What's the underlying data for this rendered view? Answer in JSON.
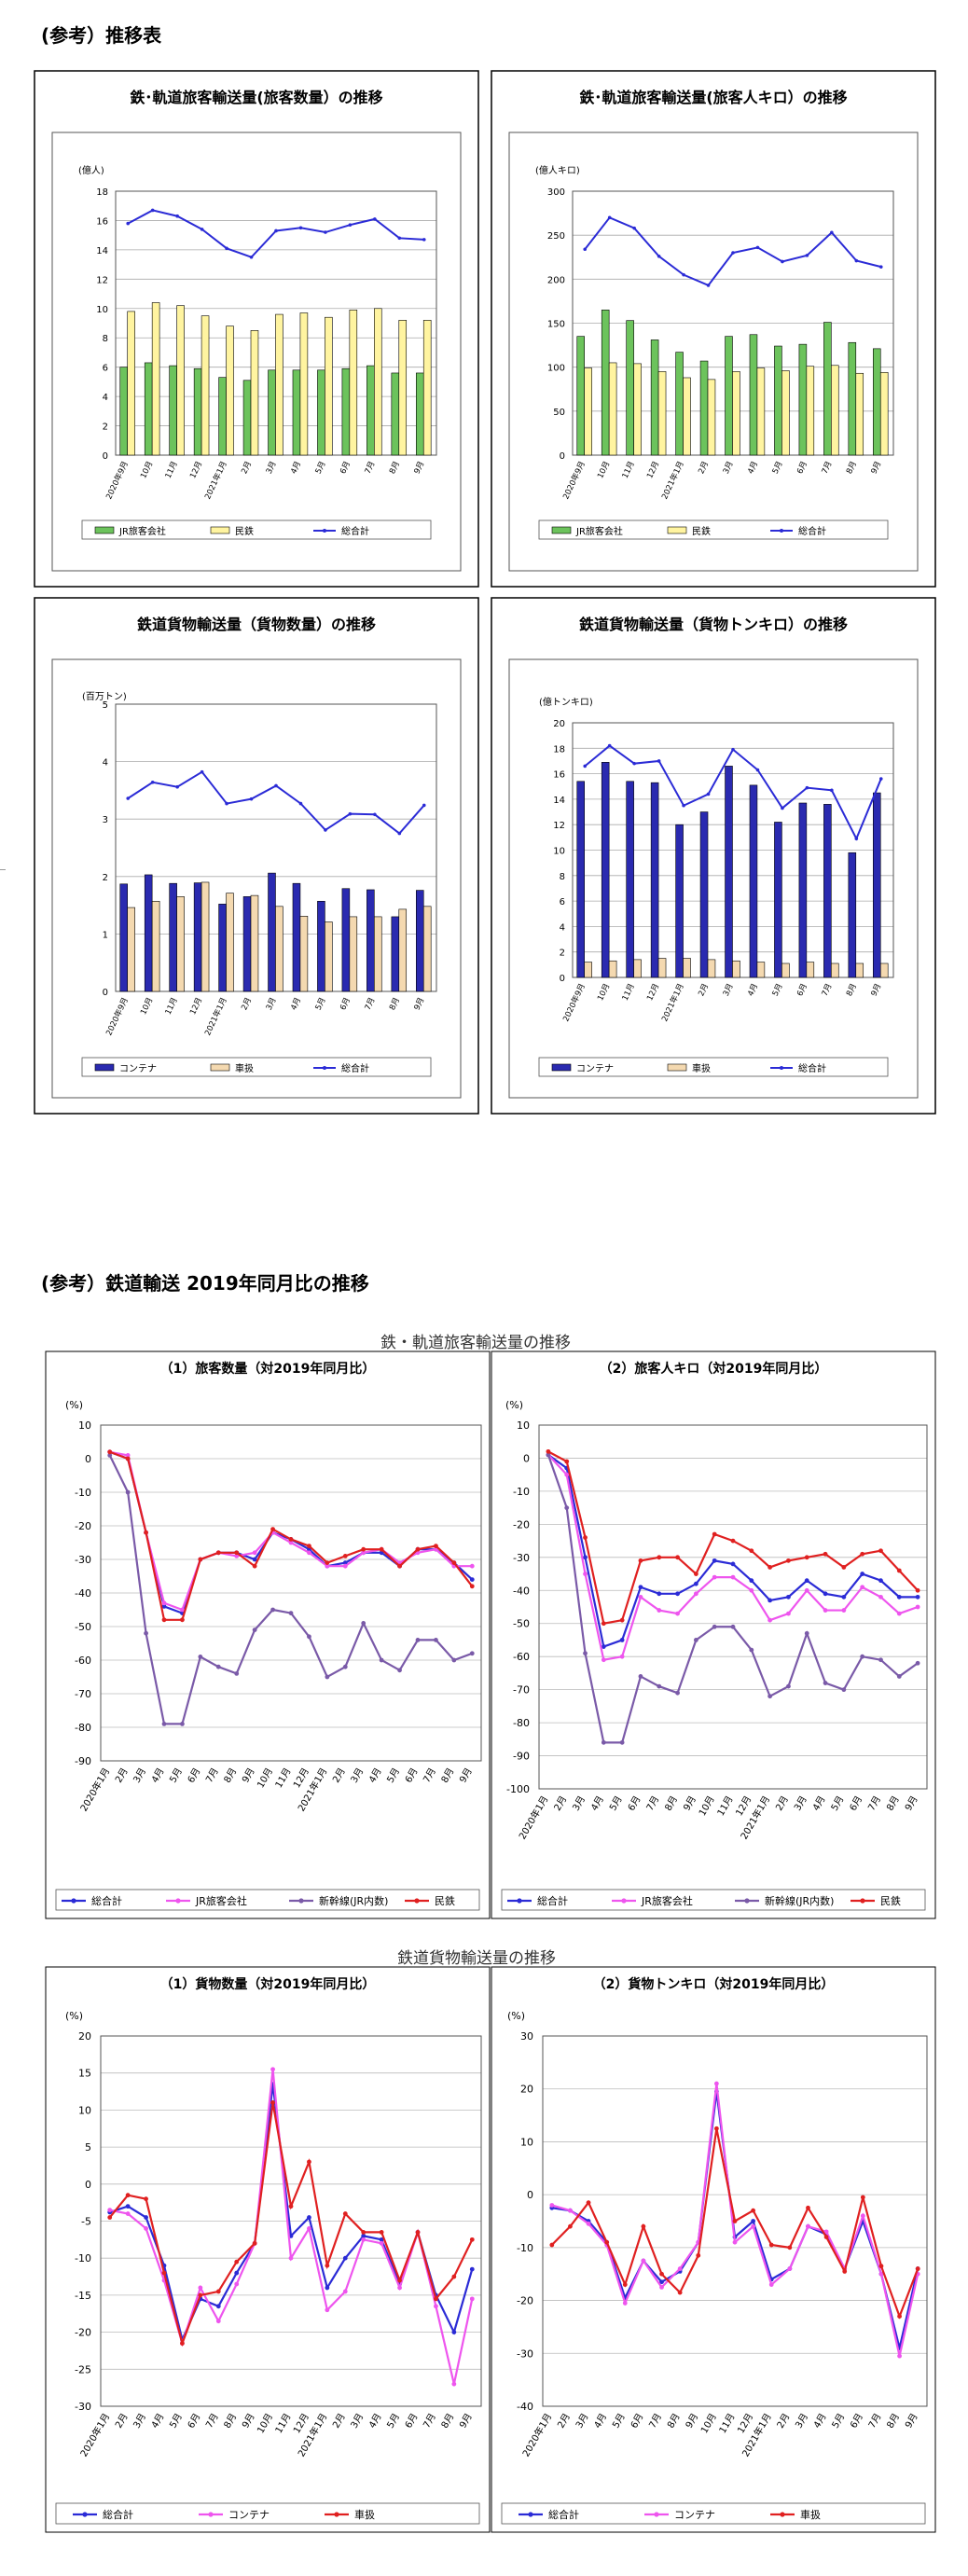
{
  "sections": {
    "top_title": "(参考）推移表",
    "bottom_title": "(参考）鉄道輸送 2019年同月比の推移",
    "passenger_group": "鉄・軌道旅客輸送量の推移",
    "freight_group": "鉄道貨物輸送量の推移"
  },
  "colors": {
    "jr_green": "#6cc35c",
    "private_yellow": "#fff4a0",
    "total_blue": "#2b2bd6",
    "container_navy": "#2a2ab0",
    "wagon_beige": "#f4d9b0",
    "shinkansen_purple": "#7a5aa8",
    "jr_magenta": "#ee55ee",
    "private_red": "#e02020"
  },
  "chart_data": [
    {
      "type": "bar",
      "title": "鉄･軌道旅客輸送量(旅客数量）の推移",
      "ylabel": "(億人)",
      "ylim": [
        0,
        18
      ],
      "yticks": [
        0,
        2,
        4,
        6,
        8,
        10,
        12,
        14,
        16,
        18
      ],
      "categories": [
        "2020年9月",
        "10月",
        "11月",
        "12月",
        "2021年1月",
        "2月",
        "3月",
        "4月",
        "5月",
        "6月",
        "7月",
        "8月",
        "9月"
      ],
      "series": [
        {
          "name": "JR旅客会社",
          "kind": "bar",
          "values": [
            6.0,
            6.3,
            6.1,
            5.9,
            5.3,
            5.1,
            5.8,
            5.8,
            5.8,
            5.9,
            6.1,
            5.6,
            5.6
          ]
        },
        {
          "name": "民鉄",
          "kind": "bar",
          "values": [
            9.8,
            10.4,
            10.2,
            9.5,
            8.8,
            8.5,
            9.6,
            9.7,
            9.4,
            9.9,
            10.0,
            9.2,
            9.2
          ]
        },
        {
          "name": "総合計",
          "kind": "line",
          "values": [
            15.8,
            16.7,
            16.3,
            15.4,
            14.1,
            13.5,
            15.3,
            15.5,
            15.2,
            15.7,
            16.1,
            14.8,
            14.7
          ]
        }
      ]
    },
    {
      "type": "bar",
      "title": "鉄･軌道旅客輸送量(旅客人キロ）の推移",
      "ylabel": "(億人キロ)",
      "ylim": [
        0,
        300
      ],
      "yticks": [
        0,
        50,
        100,
        150,
        200,
        250,
        300
      ],
      "categories": [
        "2020年9月",
        "10月",
        "11月",
        "12月",
        "2021年1月",
        "2月",
        "3月",
        "4月",
        "5月",
        "6月",
        "7月",
        "8月",
        "9月"
      ],
      "series": [
        {
          "name": "JR旅客会社",
          "kind": "bar",
          "values": [
            135,
            165,
            153,
            131,
            117,
            107,
            135,
            137,
            124,
            126,
            151,
            128,
            121
          ]
        },
        {
          "name": "民鉄",
          "kind": "bar",
          "values": [
            99,
            105,
            104,
            95,
            88,
            86,
            95,
            99,
            96,
            101,
            102,
            93,
            94
          ]
        },
        {
          "name": "総合計",
          "kind": "line",
          "values": [
            234,
            270,
            258,
            226,
            205,
            193,
            230,
            236,
            220,
            227,
            253,
            221,
            214
          ]
        }
      ]
    },
    {
      "type": "bar",
      "title": "鉄道貨物輸送量（貨物数量）の推移",
      "ylabel": "(百万トン)",
      "ylim": [
        0,
        5
      ],
      "yticks": [
        0,
        1,
        2,
        3,
        4,
        5
      ],
      "categories": [
        "2020年9月",
        "10月",
        "11月",
        "12月",
        "2021年1月",
        "2月",
        "3月",
        "4月",
        "5月",
        "6月",
        "7月",
        "8月",
        "9月"
      ],
      "series": [
        {
          "name": "コンテナ",
          "kind": "bar",
          "values": [
            1.87,
            2.03,
            1.88,
            1.89,
            1.52,
            1.65,
            2.06,
            1.88,
            1.57,
            1.79,
            1.77,
            1.3,
            1.76
          ]
        },
        {
          "name": "車扱",
          "kind": "bar",
          "values": [
            1.46,
            1.57,
            1.65,
            1.9,
            1.71,
            1.67,
            1.48,
            1.31,
            1.21,
            1.3,
            1.3,
            1.43,
            1.48
          ]
        },
        {
          "name": "総合計",
          "kind": "line",
          "values": [
            3.36,
            3.64,
            3.56,
            3.82,
            3.27,
            3.35,
            3.58,
            3.27,
            2.81,
            3.09,
            3.08,
            2.75,
            3.24
          ]
        }
      ]
    },
    {
      "type": "bar",
      "title": "鉄道貨物輸送量（貨物トンキロ）の推移",
      "ylabel": "(億トンキロ)",
      "ylim": [
        0,
        20
      ],
      "yticks": [
        0,
        2,
        4,
        6,
        8,
        10,
        12,
        14,
        16,
        18,
        20
      ],
      "categories": [
        "2020年9月",
        "10月",
        "11月",
        "12月",
        "2021年1月",
        "2月",
        "3月",
        "4月",
        "5月",
        "6月",
        "7月",
        "8月",
        "9月"
      ],
      "series": [
        {
          "name": "コンテナ",
          "kind": "bar",
          "values": [
            15.4,
            16.9,
            15.4,
            15.3,
            12.0,
            13.0,
            16.6,
            15.1,
            12.2,
            13.7,
            13.6,
            9.8,
            14.5
          ]
        },
        {
          "name": "車扱",
          "kind": "bar",
          "values": [
            1.2,
            1.3,
            1.4,
            1.5,
            1.5,
            1.4,
            1.3,
            1.2,
            1.1,
            1.2,
            1.1,
            1.1,
            1.1
          ]
        },
        {
          "name": "総合計",
          "kind": "line",
          "values": [
            16.6,
            18.2,
            16.8,
            17.0,
            13.5,
            14.4,
            17.9,
            16.3,
            13.3,
            14.9,
            14.7,
            10.9,
            15.6
          ]
        }
      ]
    },
    {
      "type": "line",
      "title": "（1）旅客数量（対2019年同月比）",
      "ylabel": "(%)",
      "ylim": [
        -90,
        10
      ],
      "yticks": [
        10,
        0,
        -10,
        -20,
        -30,
        -40,
        -50,
        -60,
        -70,
        -80,
        -90
      ],
      "categories": [
        "2020年1月",
        "2月",
        "3月",
        "4月",
        "5月",
        "6月",
        "7月",
        "8月",
        "9月",
        "10月",
        "11月",
        "12月",
        "2021年1月",
        "2月",
        "3月",
        "4月",
        "5月",
        "6月",
        "7月",
        "8月",
        "9月"
      ],
      "series": [
        {
          "name": "総合計",
          "values": [
            2,
            0,
            -22,
            -44,
            -46,
            -30,
            -28,
            -28,
            -30,
            -22,
            -24,
            -27,
            -32,
            -31,
            -28,
            -28,
            -32,
            -27,
            -27,
            -31,
            -36
          ]
        },
        {
          "name": "JR旅客会社",
          "values": [
            2,
            1,
            -22,
            -43,
            -45,
            -30,
            -28,
            -29,
            -28,
            -22,
            -25,
            -28,
            -32,
            -32,
            -28,
            -27,
            -31,
            -28,
            -27,
            -32,
            -32
          ]
        },
        {
          "name": "新幹線(JR内数)",
          "values": [
            1,
            -10,
            -52,
            -79,
            -79,
            -59,
            -62,
            -64,
            -51,
            -45,
            -46,
            -53,
            -65,
            -62,
            -49,
            -60,
            -63,
            -54,
            -54,
            -60,
            -58
          ]
        },
        {
          "name": "民鉄",
          "values": [
            2,
            0,
            -22,
            -48,
            -48,
            -30,
            -28,
            -28,
            -32,
            -21,
            -24,
            -26,
            -31,
            -29,
            -27,
            -27,
            -32,
            -27,
            -26,
            -31,
            -38
          ]
        }
      ]
    },
    {
      "type": "line",
      "title": "（2）旅客人キロ（対2019年同月比）",
      "ylabel": "(%)",
      "ylim": [
        -100,
        10
      ],
      "yticks": [
        10,
        0,
        -10,
        -20,
        -30,
        -40,
        -50,
        -60,
        -70,
        -80,
        -90,
        -100
      ],
      "categories": [
        "2020年1月",
        "2月",
        "3月",
        "4月",
        "5月",
        "6月",
        "7月",
        "8月",
        "9月",
        "10月",
        "11月",
        "12月",
        "2021年1月",
        "2月",
        "3月",
        "4月",
        "5月",
        "6月",
        "7月",
        "8月",
        "9月"
      ],
      "series": [
        {
          "name": "総合計",
          "values": [
            1,
            -3,
            -30,
            -57,
            -55,
            -39,
            -41,
            -41,
            -38,
            -31,
            -32,
            -37,
            -43,
            -42,
            -37,
            -41,
            -42,
            -35,
            -37,
            -42,
            -42
          ]
        },
        {
          "name": "JR旅客会社",
          "values": [
            1,
            -5,
            -35,
            -61,
            -60,
            -42,
            -46,
            -47,
            -41,
            -36,
            -36,
            -40,
            -49,
            -47,
            -40,
            -46,
            -46,
            -39,
            -42,
            -47,
            -45
          ]
        },
        {
          "name": "新幹線(JR内数)",
          "values": [
            1,
            -15,
            -59,
            -86,
            -86,
            -66,
            -69,
            -71,
            -55,
            -51,
            -51,
            -58,
            -72,
            -69,
            -53,
            -68,
            -70,
            -60,
            -61,
            -66,
            -62
          ]
        },
        {
          "name": "民鉄",
          "values": [
            2,
            -1,
            -24,
            -50,
            -49,
            -31,
            -30,
            -30,
            -35,
            -23,
            -25,
            -28,
            -33,
            -31,
            -30,
            -29,
            -33,
            -29,
            -28,
            -34,
            -40
          ]
        }
      ]
    },
    {
      "type": "line",
      "title": "（1）貨物数量（対2019年同月比）",
      "ylabel": "(%)",
      "ylim": [
        -30,
        20
      ],
      "yticks": [
        20,
        15,
        10,
        5,
        0,
        -5,
        -10,
        -15,
        -20,
        -25,
        -30
      ],
      "categories": [
        "2020年1月",
        "2月",
        "3月",
        "4月",
        "5月",
        "6月",
        "7月",
        "8月",
        "9月",
        "10月",
        "11月",
        "12月",
        "2021年1月",
        "2月",
        "3月",
        "4月",
        "5月",
        "6月",
        "7月",
        "8月",
        "9月"
      ],
      "series": [
        {
          "name": "総合計",
          "values": [
            -3.8,
            -3.0,
            -4.5,
            -11.0,
            -21.0,
            -15.5,
            -16.5,
            -12.0,
            -8.0,
            13.5,
            -7.0,
            -4.5,
            -14.0,
            -10.0,
            -7.0,
            -7.5,
            -13.5,
            -6.5,
            -15.0,
            -20.0,
            -11.5
          ]
        },
        {
          "name": "コンテナ",
          "values": [
            -3.5,
            -4.0,
            -6.0,
            -13.0,
            -21.5,
            -14.0,
            -18.5,
            -13.5,
            -8.0,
            15.5,
            -10.0,
            -6.0,
            -17.0,
            -14.5,
            -7.5,
            -8.0,
            -14.0,
            -6.5,
            -16.5,
            -27.0,
            -15.5
          ]
        },
        {
          "name": "車扱",
          "values": [
            -4.5,
            -1.5,
            -2.0,
            -12.0,
            -21.5,
            -15.0,
            -14.5,
            -10.5,
            -8.0,
            11.0,
            -3.0,
            3.0,
            -11.0,
            -4.0,
            -6.5,
            -6.5,
            -13.0,
            -6.5,
            -15.5,
            -12.5,
            -7.5
          ]
        }
      ]
    },
    {
      "type": "line",
      "title": "（2）貨物トンキロ（対2019年同月比）",
      "ylabel": "(%)",
      "ylim": [
        -40,
        30
      ],
      "yticks": [
        30,
        20,
        10,
        0,
        -10,
        -20,
        -30,
        -40
      ],
      "categories": [
        "2020年1月",
        "2月",
        "3月",
        "4月",
        "5月",
        "6月",
        "7月",
        "8月",
        "9月",
        "10月",
        "11月",
        "12月",
        "2021年1月",
        "2月",
        "3月",
        "4月",
        "5月",
        "6月",
        "7月",
        "8月",
        "9月"
      ],
      "series": [
        {
          "name": "総合計",
          "values": [
            -2.5,
            -3.0,
            -5.0,
            -9.0,
            -19.5,
            -12.5,
            -16.5,
            -14.5,
            -9.0,
            19.5,
            -8.0,
            -5.0,
            -16.0,
            -14.0,
            -6.0,
            -7.5,
            -14.0,
            -5.0,
            -15.0,
            -29.0,
            -14.0
          ]
        },
        {
          "name": "コンテナ",
          "values": [
            -2.0,
            -3.0,
            -5.5,
            -9.5,
            -20.5,
            -12.5,
            -17.5,
            -14.0,
            -9.0,
            21.0,
            -9.0,
            -6.0,
            -17.0,
            -14.0,
            -6.0,
            -7.0,
            -14.0,
            -4.0,
            -15.0,
            -30.5,
            -15.0
          ]
        },
        {
          "name": "車扱",
          "values": [
            -9.5,
            -6.0,
            -1.5,
            -9.0,
            -17.0,
            -6.0,
            -15.0,
            -18.5,
            -11.5,
            12.5,
            -5.0,
            -3.0,
            -9.5,
            -10.0,
            -2.5,
            -8.0,
            -14.5,
            -0.5,
            -13.5,
            -23.0,
            -14.0
          ]
        }
      ]
    }
  ]
}
